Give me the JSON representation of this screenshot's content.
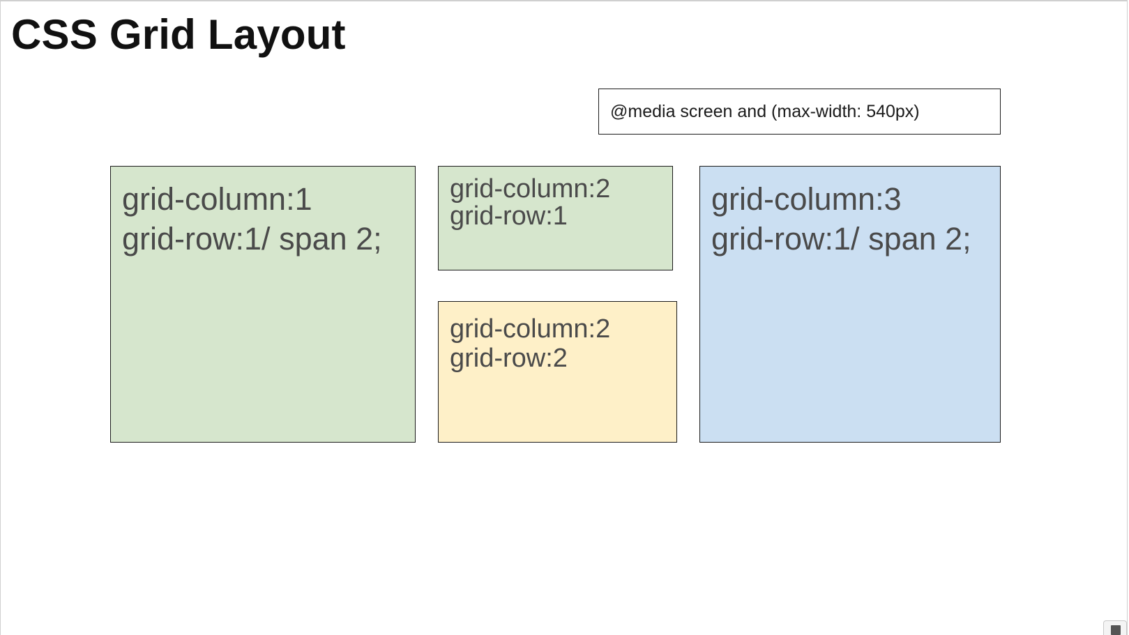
{
  "title": "CSS Grid Layout",
  "media_query": "@media screen and (max-width: 540px)",
  "cells": [
    {
      "line1": "grid-column:1",
      "line2": "grid-row:1/ span 2;",
      "color": "#d6e6cd"
    },
    {
      "line1": "grid-column:2",
      "line2": "grid-row:1",
      "color": "#d6e6cd"
    },
    {
      "line1": "grid-column:2",
      "line2": "grid-row:2",
      "color": "#fef0c8"
    },
    {
      "line1": "grid-column:3",
      "line2": "grid-row:1/ span 2;",
      "color": "#cbdff2"
    }
  ],
  "corner_icon": "expand-icon"
}
